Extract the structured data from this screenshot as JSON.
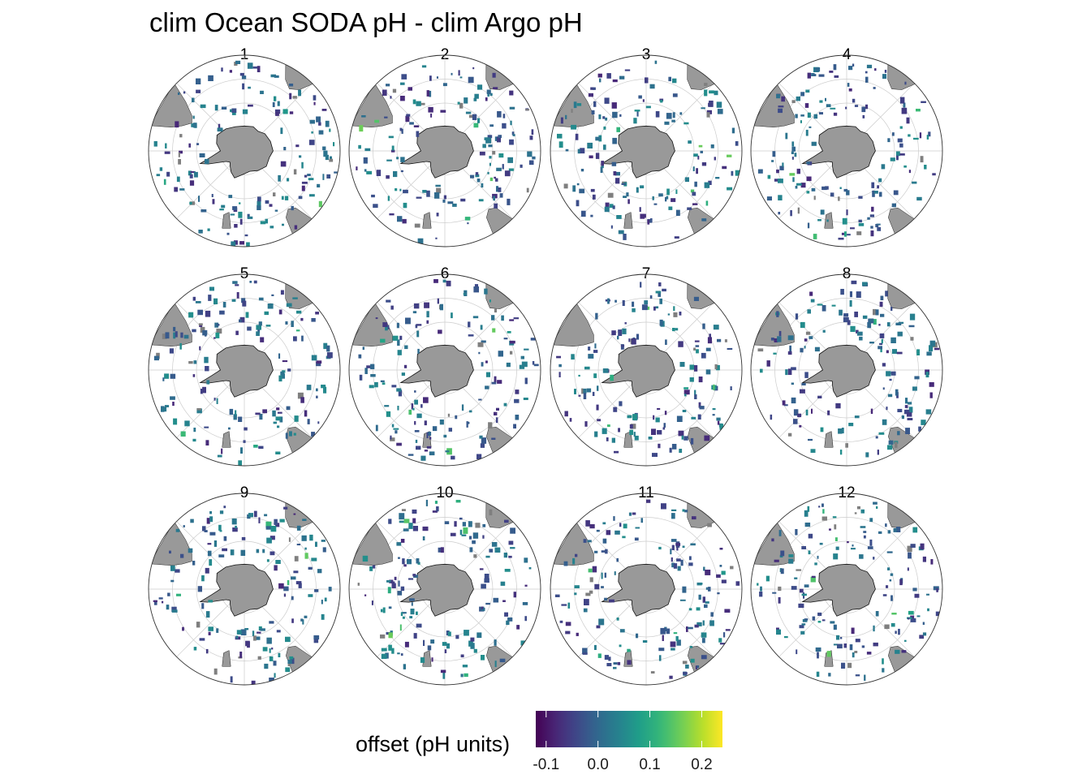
{
  "chart_data": {
    "type": "heatmap",
    "title": "clim Ocean SODA pH - clim Argo pH",
    "projection": "south-polar stereographic",
    "panels": [
      "1",
      "2",
      "3",
      "4",
      "5",
      "6",
      "7",
      "8",
      "9",
      "10",
      "11",
      "12"
    ],
    "legend": {
      "title": "offset (pH units)",
      "range": [
        -0.12,
        0.24
      ],
      "ticks": [
        -0.1,
        0.0,
        0.1,
        0.2
      ],
      "tick_labels": [
        "-0.1",
        "0.0",
        "0.1",
        "0.2"
      ],
      "colormap": "viridis",
      "position": "bottom"
    },
    "land_color": "#999999",
    "na_color": "#7f7f7f",
    "grid": true
  }
}
